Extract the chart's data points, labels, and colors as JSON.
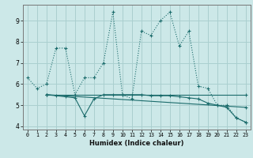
{
  "xlabel": "Humidex (Indice chaleur)",
  "bg_color": "#cce8e8",
  "grid_color": "#aacfcf",
  "line_color": "#1a6b6b",
  "series1_x": [
    0,
    1,
    2,
    3,
    4,
    5,
    6,
    7,
    8,
    9,
    10,
    11,
    12,
    13,
    14,
    15,
    16,
    17,
    18,
    19,
    20,
    21,
    22,
    23
  ],
  "series1_y": [
    6.3,
    5.8,
    6.0,
    7.7,
    7.7,
    5.5,
    6.3,
    6.3,
    7.0,
    9.4,
    5.5,
    5.3,
    8.5,
    8.3,
    9.0,
    9.4,
    7.8,
    8.5,
    5.9,
    5.8,
    5.0,
    5.0,
    4.4,
    4.2
  ],
  "series2_x": [
    2,
    3,
    4,
    5,
    6,
    7,
    8,
    9,
    10,
    11,
    12,
    13,
    14,
    15,
    16,
    17,
    18,
    19,
    20,
    21,
    22,
    23
  ],
  "series2_y": [
    5.5,
    5.45,
    5.4,
    5.35,
    4.5,
    5.3,
    5.5,
    5.5,
    5.5,
    5.5,
    5.5,
    5.45,
    5.45,
    5.45,
    5.4,
    5.35,
    5.3,
    5.1,
    5.0,
    4.9,
    4.4,
    4.2
  ],
  "series3_x": [
    2,
    23
  ],
  "series3_y": [
    5.5,
    4.9
  ],
  "series4_x": [
    2,
    23
  ],
  "series4_y": [
    5.5,
    5.5
  ],
  "ylim": [
    3.85,
    9.75
  ],
  "xlim": [
    -0.5,
    23.5
  ],
  "yticks": [
    4,
    5,
    6,
    7,
    8,
    9
  ],
  "xticks": [
    0,
    1,
    2,
    3,
    4,
    5,
    6,
    7,
    8,
    9,
    10,
    11,
    12,
    13,
    14,
    15,
    16,
    17,
    18,
    19,
    20,
    21,
    22,
    23
  ]
}
